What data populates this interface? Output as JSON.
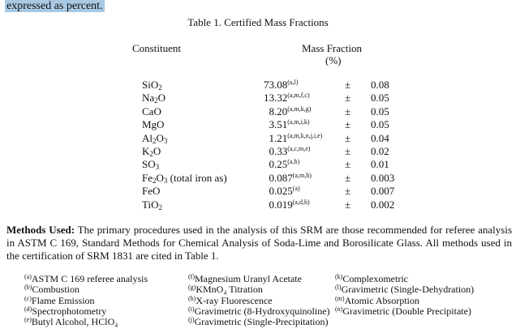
{
  "top_text": "expressed as percent.",
  "table": {
    "title": "Table 1.  Certified Mass Fractions",
    "col_constituent": "Constituent",
    "col_mass": "Mass Fraction",
    "col_unit": "(%)",
    "pm": "±",
    "rows": [
      {
        "pre": "SiO",
        "sub": "2",
        "post": "",
        "int": "73",
        "frac": ".08",
        "sup": "(a,l)",
        "unc": "0.08"
      },
      {
        "pre": "Na",
        "sub": "2",
        "post": "O",
        "int": "13",
        "frac": ".32",
        "sup": "(a,m,f,c)",
        "unc": "0.05"
      },
      {
        "pre": "CaO",
        "sub": "",
        "post": "",
        "int": "8",
        "frac": ".20",
        "sup": "(a,m,k,g)",
        "unc": "0.05"
      },
      {
        "pre": "MgO",
        "sub": "",
        "post": "",
        "int": "3",
        "frac": ".51",
        "sup": "(a,m,i,k)",
        "unc": "0.05"
      },
      {
        "pre": "Al",
        "sub": "2",
        "post": "O",
        "sub2": "3",
        "int": "1",
        "frac": ".21",
        "sup": "(a,m,k,n,j,i,e)",
        "unc": "0.04"
      },
      {
        "pre": "K",
        "sub": "2",
        "post": "O",
        "int": "0",
        "frac": ".33",
        "sup": "(a,c,m,e)",
        "unc": "0.02"
      },
      {
        "pre": "SO",
        "sub": "3",
        "post": "",
        "int": "0",
        "frac": ".25",
        "sup": "(a,b)",
        "unc": "0.01"
      },
      {
        "pre": "Fe",
        "sub": "2",
        "post": "O",
        "sub2": "3",
        "post2": " (total iron as)",
        "int": "0",
        "frac": ".087",
        "sup": "(a,m,h)",
        "unc": "0.003"
      },
      {
        "pre": "FeO",
        "sub": "",
        "post": "",
        "int": "0",
        "frac": ".025",
        "sup": "(a)",
        "unc": "0.007"
      },
      {
        "pre": "TiO",
        "sub": "2",
        "post": "",
        "int": "0",
        "frac": ".019",
        "sup": "(a,d,h)",
        "unc": "0.002"
      }
    ]
  },
  "methods": {
    "label": "Methods Used:",
    "text": " The primary procedures used in the analysis of this SRM are those recommended for referee analysis in ASTM C 169, Standard Methods for Chemical Analysis of Soda-Lime and Borosilicate Glass.  All methods used in the certification of SRM 1831 are cited in Table 1."
  },
  "footnotes": [
    [
      {
        "k": "(a)",
        "t": "ASTM C 169 referee analysis"
      },
      {
        "k": "(b)",
        "t": "Combustion"
      },
      {
        "k": "(c)",
        "t": "Flame Emission"
      },
      {
        "k": "(d)",
        "t": "Spectrophotometry"
      },
      {
        "k": "(e)",
        "t": "Butyl Alcohol, HClO₄"
      }
    ],
    [
      {
        "k": "(f)",
        "t": "Magnesium Uranyl Acetate"
      },
      {
        "k": "(g)",
        "t": "KMnO₄ Titration"
      },
      {
        "k": "(h)",
        "t": "X-ray Fluorescence"
      },
      {
        "k": "(i)",
        "t": "Gravimetric (8-Hydroxyquinoline)"
      },
      {
        "k": "(j)",
        "t": "Gravimetric (Single-Precipitation)"
      }
    ],
    [
      {
        "k": "(k)",
        "t": "Complexometric"
      },
      {
        "k": "(l)",
        "t": "Gravimetric (Single-Dehydration)"
      },
      {
        "k": "(m)",
        "t": "Atomic Absorption"
      },
      {
        "k": "(n)",
        "t": "Gravimetric (Double Precipitate)"
      }
    ]
  ]
}
